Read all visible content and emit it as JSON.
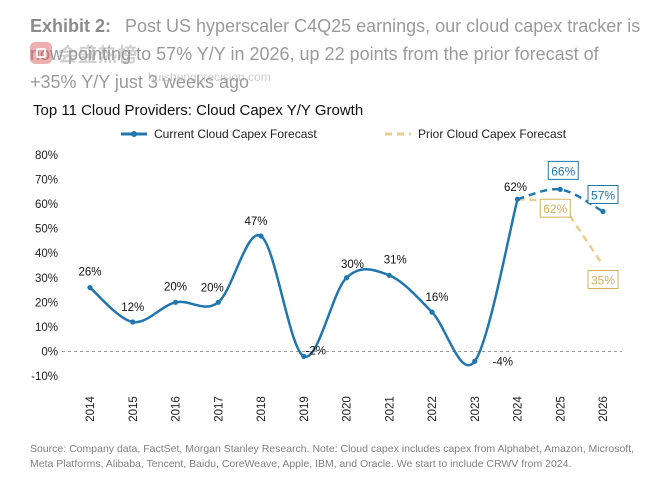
{
  "header": {
    "label": "Exhibit 2:",
    "text": "Post US hyperscaler C4Q25 earnings, our cloud capex tracker is now pointing to 57% Y/Y in 2026, up 22 points from the prior forecast of +35% Y/Y just 3 weeks ago"
  },
  "watermark": {
    "brand": "会盛热榜",
    "url": "huishengprecision.com"
  },
  "chart_data": {
    "type": "line",
    "title": "Top 11 Cloud Providers: Cloud Capex Y/Y Growth",
    "categories": [
      "2014",
      "2015",
      "2016",
      "2017",
      "2018",
      "2019",
      "2020",
      "2021",
      "2022",
      "2023",
      "2024",
      "2025",
      "2026"
    ],
    "y_ticks": [
      "80%",
      "70%",
      "60%",
      "50%",
      "40%",
      "30%",
      "20%",
      "10%",
      "0%",
      "-10%"
    ],
    "ylim": [
      -10,
      80
    ],
    "y_tick_values": [
      80,
      70,
      60,
      50,
      40,
      30,
      20,
      10,
      0,
      -10
    ],
    "series": [
      {
        "name": "Current Cloud Capex Forecast",
        "color": "#2176ae",
        "values": [
          26,
          12,
          20,
          20,
          47,
          -2,
          30,
          31,
          16,
          -4,
          62,
          66,
          57
        ],
        "labels": [
          "26%",
          "12%",
          "20%",
          "20%",
          "47%",
          "-2%",
          "30%",
          "31%",
          "16%",
          "-4%",
          "62%",
          "66%",
          "57%"
        ]
      },
      {
        "name": "Prior Cloud Capex Forecast",
        "color": "#e8cf8f",
        "x": [
          "2024",
          "2025",
          "2026"
        ],
        "values": [
          62,
          62,
          35
        ],
        "labels": [
          "62%",
          "35%"
        ]
      }
    ]
  },
  "source": "Source: Company data, FactSet, Morgan Stanley Research. Note: Cloud capex includes capex from Alphabet, Amazon, Microsoft, Meta Platforms, Alibaba, Tencent, Baidu, CoreWeave, Apple, IBM, and Oracle. We start to include CRWV from 2024."
}
